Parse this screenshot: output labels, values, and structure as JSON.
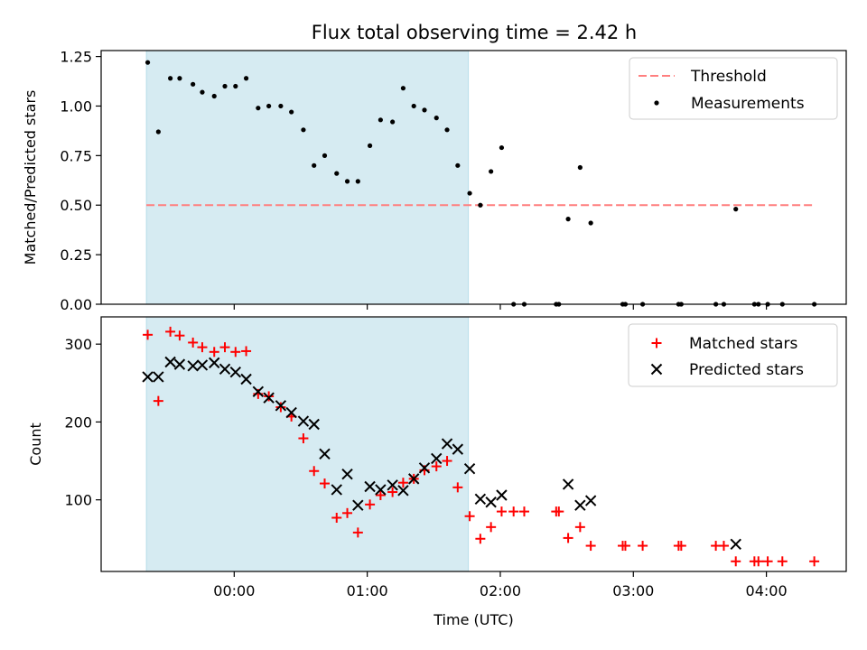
{
  "title": "Flux total observing time = 2.42 h",
  "chart_data": [
    {
      "type": "scatter",
      "panel": "top",
      "ylabel": "Matched/Predicted stars",
      "xlabel": "",
      "ylim": [
        0,
        1.28
      ],
      "xlim_hours": [
        -1.0,
        4.6
      ],
      "yticks": [
        0.0,
        0.25,
        0.5,
        0.75,
        1.0,
        1.25
      ],
      "ytick_labels": [
        "0.00",
        "0.25",
        "0.50",
        "0.75",
        "1.00",
        "1.25"
      ],
      "shaded_region_hours": [
        -0.66,
        1.76
      ],
      "legend": {
        "position": "top-right",
        "entries": [
          "Threshold",
          "Measurements"
        ]
      },
      "threshold": {
        "name": "Threshold",
        "y": 0.5,
        "x_range_hours": [
          -0.66,
          4.36
        ],
        "color": "#ff7f7f"
      },
      "series": [
        {
          "name": "Measurements",
          "color": "#000000",
          "points": [
            [
              -0.65,
              1.22
            ],
            [
              -0.57,
              0.87
            ],
            [
              -0.48,
              1.14
            ],
            [
              -0.41,
              1.14
            ],
            [
              -0.31,
              1.11
            ],
            [
              -0.24,
              1.07
            ],
            [
              -0.15,
              1.05
            ],
            [
              -0.07,
              1.1
            ],
            [
              0.01,
              1.1
            ],
            [
              0.09,
              1.14
            ],
            [
              0.18,
              0.99
            ],
            [
              0.26,
              1.0
            ],
            [
              0.35,
              1.0
            ],
            [
              0.43,
              0.97
            ],
            [
              0.52,
              0.88
            ],
            [
              0.6,
              0.7
            ],
            [
              0.68,
              0.75
            ],
            [
              0.77,
              0.66
            ],
            [
              0.85,
              0.62
            ],
            [
              0.93,
              0.62
            ],
            [
              1.02,
              0.8
            ],
            [
              1.1,
              0.93
            ],
            [
              1.19,
              0.92
            ],
            [
              1.27,
              1.09
            ],
            [
              1.35,
              1.0
            ],
            [
              1.43,
              0.98
            ],
            [
              1.52,
              0.94
            ],
            [
              1.6,
              0.88
            ],
            [
              1.68,
              0.7
            ],
            [
              1.77,
              0.56
            ],
            [
              1.85,
              0.5
            ],
            [
              1.93,
              0.67
            ],
            [
              2.01,
              0.79
            ],
            [
              2.1,
              0.0
            ],
            [
              2.18,
              0.0
            ],
            [
              2.42,
              0.0
            ],
            [
              2.44,
              0.0
            ],
            [
              2.51,
              0.43
            ],
            [
              2.6,
              0.69
            ],
            [
              2.68,
              0.41
            ],
            [
              2.92,
              0.0
            ],
            [
              2.94,
              0.0
            ],
            [
              3.07,
              0.0
            ],
            [
              3.34,
              0.0
            ],
            [
              3.36,
              0.0
            ],
            [
              3.62,
              0.0
            ],
            [
              3.68,
              0.0
            ],
            [
              3.77,
              0.48
            ],
            [
              3.91,
              0.0
            ],
            [
              3.94,
              0.0
            ],
            [
              4.01,
              0.0
            ],
            [
              4.12,
              0.0
            ],
            [
              4.36,
              0.0
            ]
          ]
        }
      ]
    },
    {
      "type": "scatter",
      "panel": "bottom",
      "ylabel": "Count",
      "xlabel": "Time (UTC)",
      "ylim": [
        8,
        335
      ],
      "xlim_hours": [
        -1.0,
        4.6
      ],
      "yticks": [
        100,
        200,
        300
      ],
      "ytick_labels": [
        "100",
        "200",
        "300"
      ],
      "xticks_hours": [
        0,
        1,
        2,
        3,
        4
      ],
      "xtick_labels": [
        "00:00",
        "01:00",
        "02:00",
        "03:00",
        "04:00"
      ],
      "shaded_region_hours": [
        -0.66,
        1.76
      ],
      "legend": {
        "position": "top-right",
        "entries": [
          "Matched stars",
          "Predicted stars"
        ]
      },
      "series": [
        {
          "name": "Matched stars",
          "marker": "plus",
          "color": "#ff0000",
          "points": [
            [
              -0.65,
              312
            ],
            [
              -0.57,
              227
            ],
            [
              -0.48,
              316
            ],
            [
              -0.41,
              311
            ],
            [
              -0.31,
              302
            ],
            [
              -0.24,
              296
            ],
            [
              -0.15,
              290
            ],
            [
              -0.07,
              296
            ],
            [
              0.01,
              290
            ],
            [
              0.09,
              291
            ],
            [
              0.18,
              236
            ],
            [
              0.26,
              233
            ],
            [
              0.35,
              219
            ],
            [
              0.43,
              207
            ],
            [
              0.52,
              179
            ],
            [
              0.6,
              137
            ],
            [
              0.68,
              121
            ],
            [
              0.77,
              77
            ],
            [
              0.85,
              83
            ],
            [
              0.93,
              58
            ],
            [
              1.02,
              94
            ],
            [
              1.1,
              106
            ],
            [
              1.19,
              110
            ],
            [
              1.27,
              122
            ],
            [
              1.35,
              127
            ],
            [
              1.43,
              138
            ],
            [
              1.52,
              143
            ],
            [
              1.6,
              150
            ],
            [
              1.68,
              116
            ],
            [
              1.77,
              79
            ],
            [
              1.85,
              50
            ],
            [
              1.93,
              65
            ],
            [
              2.01,
              85
            ],
            [
              2.1,
              85
            ],
            [
              2.18,
              85
            ],
            [
              2.42,
              85
            ],
            [
              2.44,
              85
            ],
            [
              2.51,
              51
            ],
            [
              2.6,
              65
            ],
            [
              2.68,
              41
            ],
            [
              2.92,
              41
            ],
            [
              2.94,
              41
            ],
            [
              3.07,
              41
            ],
            [
              3.34,
              41
            ],
            [
              3.36,
              41
            ],
            [
              3.62,
              41
            ],
            [
              3.68,
              41
            ],
            [
              3.77,
              21
            ],
            [
              3.91,
              21
            ],
            [
              3.94,
              21
            ],
            [
              4.01,
              21
            ],
            [
              4.12,
              21
            ],
            [
              4.36,
              21
            ]
          ]
        },
        {
          "name": "Predicted stars",
          "marker": "x",
          "color": "#000000",
          "points": [
            [
              -0.65,
              258
            ],
            [
              -0.57,
              258
            ],
            [
              -0.48,
              277
            ],
            [
              -0.41,
              274
            ],
            [
              -0.31,
              272
            ],
            [
              -0.24,
              273
            ],
            [
              -0.15,
              276
            ],
            [
              -0.07,
              268
            ],
            [
              0.01,
              264
            ],
            [
              0.09,
              255
            ],
            [
              0.18,
              239
            ],
            [
              0.26,
              231
            ],
            [
              0.35,
              221
            ],
            [
              0.43,
              212
            ],
            [
              0.52,
              201
            ],
            [
              0.6,
              197
            ],
            [
              0.68,
              159
            ],
            [
              0.77,
              113
            ],
            [
              0.85,
              133
            ],
            [
              0.93,
              93
            ],
            [
              1.02,
              117
            ],
            [
              1.1,
              113
            ],
            [
              1.19,
              119
            ],
            [
              1.27,
              112
            ],
            [
              1.35,
              127
            ],
            [
              1.43,
              141
            ],
            [
              1.52,
              153
            ],
            [
              1.6,
              172
            ],
            [
              1.68,
              165
            ],
            [
              1.77,
              140
            ],
            [
              1.85,
              101
            ],
            [
              1.93,
              97
            ],
            [
              2.01,
              106
            ],
            [
              2.51,
              120
            ],
            [
              2.6,
              93
            ],
            [
              2.68,
              99
            ],
            [
              3.77,
              43
            ]
          ]
        }
      ]
    }
  ]
}
